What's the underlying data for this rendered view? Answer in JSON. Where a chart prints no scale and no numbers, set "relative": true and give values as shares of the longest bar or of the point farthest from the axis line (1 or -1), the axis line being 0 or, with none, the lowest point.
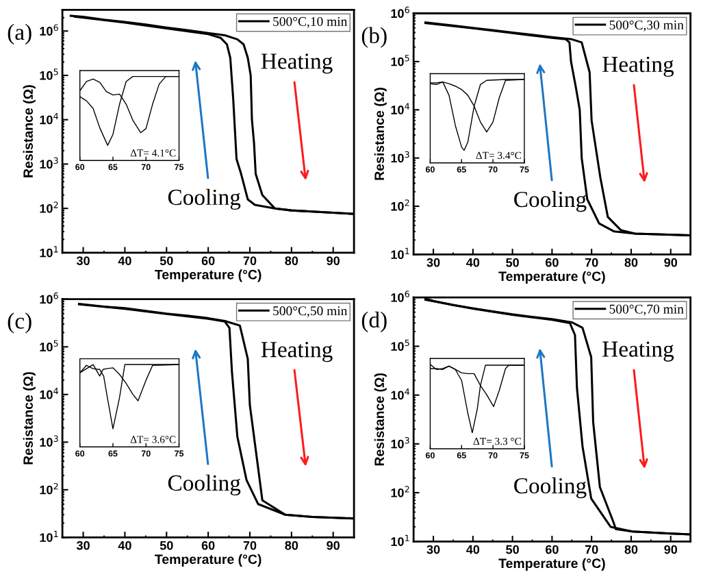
{
  "chart_data": [
    {
      "type": "line",
      "title": "(a)",
      "xlabel": "Temperature (°C)",
      "ylabel": "Resistance (Ω)",
      "log": "y",
      "xlim": [
        25,
        95
      ],
      "ylim": [
        10,
        3000000
      ],
      "xticks": [
        30,
        40,
        50,
        60,
        70,
        80,
        90
      ],
      "yticks": [
        {
          "value": 10,
          "label": "10$^{1}$"
        },
        {
          "value": 100,
          "label": "10$^{2}$"
        },
        {
          "value": 1000,
          "label": "10$^{3}$"
        },
        {
          "value": 10000,
          "label": "10$^{4}$"
        },
        {
          "value": 100000,
          "label": "10$^{5}$"
        },
        {
          "value": 1000000,
          "label": "10$^{6}$"
        }
      ],
      "legend": "top right",
      "marker": "none",
      "line_style": "solid",
      "annotations": [
        "Heating",
        "Cooling"
      ],
      "series": [
        {
          "name": "500°C,10 min",
          "color": "#000000",
          "x": [
            27,
            30,
            35,
            40,
            45,
            50,
            55,
            60,
            64,
            67,
            68.5,
            69.5,
            70.2,
            70.5,
            71,
            71.4,
            73,
            76,
            80,
            85,
            90,
            95
          ],
          "values": [
            2200000,
            2100000,
            1800000,
            1600000,
            1400000,
            1200000,
            1050000,
            900000,
            800000,
            650000,
            500000,
            250000,
            100000,
            10000,
            3000,
            600,
            200,
            100,
            90,
            85,
            80,
            75
          ]
        },
        {
          "color": "#000000",
          "x": [
            28,
            30,
            40,
            50,
            60,
            63,
            64.5,
            65.3,
            65.6,
            66,
            66.8,
            67.9,
            69.5,
            71.2,
            76,
            80,
            90,
            95
          ],
          "values": [
            2100000,
            2000000,
            1550000,
            1150000,
            850000,
            700000,
            500000,
            250000,
            100000,
            30000,
            1300,
            600,
            160,
            120,
            100,
            90,
            80,
            75
          ]
        }
      ]
    },
    {
      "type": "line",
      "relative": true,
      "xlim": [
        60,
        75
      ],
      "xticks": [
        60,
        65,
        70,
        75
      ],
      "tick_labels": "x",
      "annotations": [
        "ΔT= 4.1°C"
      ],
      "series": [
        {
          "color": "#000000",
          "x": [
            60,
            61,
            62,
            63,
            64.2,
            65,
            66,
            67,
            68,
            70,
            75
          ],
          "values": [
            0.76,
            0.71,
            0.62,
            0.39,
            0.18,
            0.31,
            0.67,
            0.94,
            1,
            1,
            1
          ]
        },
        {
          "color": "#000000",
          "x": [
            60,
            61,
            62,
            63,
            64,
            65,
            66,
            67,
            68,
            69.2,
            70,
            71,
            72,
            73,
            75
          ],
          "values": [
            0.83,
            0.94,
            0.97,
            0.93,
            0.82,
            0.78,
            0.79,
            0.67,
            0.48,
            0.33,
            0.38,
            0.67,
            0.91,
            1,
            1
          ]
        }
      ]
    },
    {
      "type": "line",
      "title": "(b)",
      "xlabel": "Temperature (°C)",
      "ylabel": "Resistance (Ω)",
      "log": "y",
      "xlim": [
        25,
        95
      ],
      "ylim": [
        10,
        1000000
      ],
      "xticks": [
        30,
        40,
        50,
        60,
        70,
        80,
        90
      ],
      "yticks": [
        {
          "value": 10,
          "label": "10$^{1}$"
        },
        {
          "value": 100,
          "label": "10$^{2}$"
        },
        {
          "value": 1000,
          "label": "10$^{3}$"
        },
        {
          "value": 10000,
          "label": "10$^{4}$"
        },
        {
          "value": 100000,
          "label": "10$^{5}$"
        },
        {
          "value": 1000000,
          "label": "10$^{6}$"
        }
      ],
      "legend": "top right",
      "marker": "none",
      "line_style": "solid",
      "annotations": [
        "Heating",
        "Cooling"
      ],
      "series": [
        {
          "name": "500°C,30 min",
          "color": "#000000",
          "x": [
            28,
            30,
            35,
            40,
            45,
            50,
            55,
            60,
            65,
            67.5,
            69.5,
            70,
            72.2,
            74.1,
            77.4,
            81,
            95
          ],
          "values": [
            650000,
            620000,
            560000,
            500000,
            450000,
            400000,
            360000,
            320000,
            290000,
            250000,
            60000,
            6000,
            400,
            60,
            32,
            27,
            25
          ]
        },
        {
          "color": "#000000",
          "x": [
            28,
            40,
            50,
            60,
            63.5,
            64.4,
            64.8,
            66,
            67,
            67.5,
            68.9,
            71.9,
            75.7,
            81,
            95
          ],
          "values": [
            630000,
            490000,
            390000,
            310000,
            290000,
            250000,
            100000,
            30000,
            10000,
            1000,
            140,
            44,
            30,
            27,
            25
          ]
        }
      ]
    },
    {
      "type": "line",
      "relative": true,
      "xlim": [
        60,
        75
      ],
      "xticks": [
        60,
        65,
        70,
        75
      ],
      "tick_labels": "x",
      "annotations": [
        "ΔT= 3.4°C"
      ],
      "series": [
        {
          "color": "#000000",
          "x": [
            60,
            61,
            62,
            63,
            64,
            65,
            65.4,
            66,
            67,
            68,
            69,
            72,
            75
          ],
          "values": [
            0.96,
            0.96,
            0.97,
            0.81,
            0.45,
            0.19,
            0.15,
            0.25,
            0.68,
            0.94,
            0.99,
            1,
            1
          ]
        },
        {
          "color": "#000000",
          "x": [
            60,
            61,
            62,
            63,
            64,
            65,
            66,
            67,
            68,
            69,
            70,
            71,
            72,
            75
          ],
          "values": [
            0.95,
            0.94,
            0.97,
            0.95,
            0.92,
            0.88,
            0.81,
            0.68,
            0.49,
            0.37,
            0.49,
            0.78,
            0.99,
            1
          ]
        }
      ]
    },
    {
      "type": "line",
      "title": "(c)",
      "xlabel": "Temperature (°C)",
      "ylabel": "Resistance (Ω)",
      "log": "y",
      "xlim": [
        25,
        95
      ],
      "ylim": [
        10,
        1000000
      ],
      "xticks": [
        30,
        40,
        50,
        60,
        70,
        80,
        90
      ],
      "yticks": [
        {
          "value": 10,
          "label": "10$^{1}$"
        },
        {
          "value": 100,
          "label": "10$^{2}$"
        },
        {
          "value": 1000,
          "label": "10$^{3}$"
        },
        {
          "value": 10000,
          "label": "10$^{4}$"
        },
        {
          "value": 100000,
          "label": "10$^{5}$"
        },
        {
          "value": 1000000,
          "label": "10$^{6}$"
        }
      ],
      "legend": "top right",
      "marker": "none",
      "line_style": "solid",
      "annotations": [
        "Heating",
        "Cooling"
      ],
      "series": [
        {
          "name": "500°C,50 min",
          "color": "#000000",
          "x": [
            29,
            35,
            40,
            45,
            50,
            55,
            60,
            64,
            67.6,
            69.5,
            70,
            72,
            73,
            78.5,
            85,
            95
          ],
          "values": [
            800000,
            700000,
            650000,
            570000,
            500000,
            450000,
            400000,
            350000,
            280000,
            56000,
            6000,
            280,
            60,
            30,
            27,
            25
          ]
        },
        {
          "color": "#000000",
          "x": [
            29,
            40,
            50,
            60,
            64,
            65.1,
            65.7,
            67,
            69.2,
            72,
            78.5,
            85,
            95
          ],
          "values": [
            780000,
            630000,
            490000,
            390000,
            340000,
            250000,
            30000,
            1300,
            160,
            50,
            30,
            27,
            25
          ]
        }
      ]
    },
    {
      "type": "line",
      "relative": true,
      "xlim": [
        60,
        75
      ],
      "xticks": [
        60,
        65,
        70,
        75
      ],
      "tick_labels": "x",
      "annotations": [
        "ΔT= 3.6°C"
      ],
      "series": [
        {
          "color": "#000000",
          "x": [
            60,
            61,
            62,
            63,
            63.6,
            64,
            65,
            66,
            66.8,
            67,
            75
          ],
          "values": [
            0.9,
            0.99,
            0.95,
            0.94,
            0.86,
            0.67,
            0.22,
            0.6,
            1,
            1,
            1
          ]
        },
        {
          "color": "#000000",
          "x": [
            60,
            61,
            62,
            63,
            63.5,
            64,
            65,
            66,
            67,
            68,
            68.8,
            70,
            71,
            75
          ],
          "values": [
            0.9,
            0.95,
            1,
            0.86,
            0.94,
            0.95,
            0.96,
            0.88,
            0.77,
            0.64,
            0.56,
            0.81,
            0.99,
            1
          ]
        }
      ]
    },
    {
      "type": "line",
      "title": "(d)",
      "xlabel": "Temperature (°C)",
      "ylabel": "Resistance (Ω)",
      "log": "y",
      "xlim": [
        25,
        95
      ],
      "ylim": [
        10,
        1000000
      ],
      "xticks": [
        30,
        40,
        50,
        60,
        70,
        80,
        90
      ],
      "yticks": [
        {
          "value": 10,
          "label": "10$^{1}$"
        },
        {
          "value": 100,
          "label": "10$^{2}$"
        },
        {
          "value": 1000,
          "label": "10$^{3}$"
        },
        {
          "value": 10000,
          "label": "10$^{4}$"
        },
        {
          "value": 100000,
          "label": "10$^{5}$"
        },
        {
          "value": 1000000,
          "label": "10$^{6}$"
        }
      ],
      "legend": "top right",
      "marker": "none",
      "line_style": "solid",
      "annotations": [
        "Heating",
        "Cooling"
      ],
      "series": [
        {
          "name": "500°C,70 min",
          "color": "#000000",
          "x": [
            28,
            30,
            35,
            40,
            45,
            50,
            55,
            60,
            65,
            67.7,
            69.9,
            70.4,
            72.1,
            75.6,
            76.1,
            80.3,
            90,
            95
          ],
          "values": [
            950000,
            850000,
            700000,
            600000,
            520000,
            450000,
            400000,
            360000,
            310000,
            240000,
            60000,
            2800,
            130,
            24,
            18,
            16,
            14.5,
            14
          ]
        },
        {
          "color": "#000000",
          "x": [
            28,
            40,
            50,
            60,
            64.5,
            65.8,
            66.3,
            67.7,
            69.9,
            74.8,
            80.3,
            90,
            95
          ],
          "values": [
            900000,
            590000,
            440000,
            350000,
            300000,
            170000,
            14000,
            900,
            76,
            20,
            16,
            14.5,
            14
          ]
        }
      ]
    },
    {
      "type": "line",
      "relative": true,
      "xlim": [
        60,
        75
      ],
      "xticks": [
        60,
        65,
        70,
        75
      ],
      "tick_labels": "x",
      "annotations": [
        "ΔT= 3.3 °C"
      ],
      "series": [
        {
          "color": "#000000",
          "x": [
            60,
            61,
            62,
            63,
            64,
            65,
            66,
            66.7,
            67.5,
            68,
            68.8,
            70,
            75
          ],
          "values": [
            1,
            0.94,
            0.95,
            0.98,
            0.94,
            0.81,
            0.42,
            0.19,
            0.47,
            0.75,
            0.99,
            0.99,
            0.99
          ]
        },
        {
          "color": "#000000",
          "x": [
            60,
            61,
            62,
            63,
            64,
            65,
            66,
            67,
            68,
            69,
            70.1,
            71,
            72,
            72.5,
            75
          ],
          "values": [
            0.95,
            0.95,
            0.94,
            0.98,
            0.94,
            0.9,
            0.89,
            0.89,
            0.75,
            0.64,
            0.5,
            0.69,
            0.95,
            0.99,
            0.99
          ]
        }
      ]
    }
  ]
}
